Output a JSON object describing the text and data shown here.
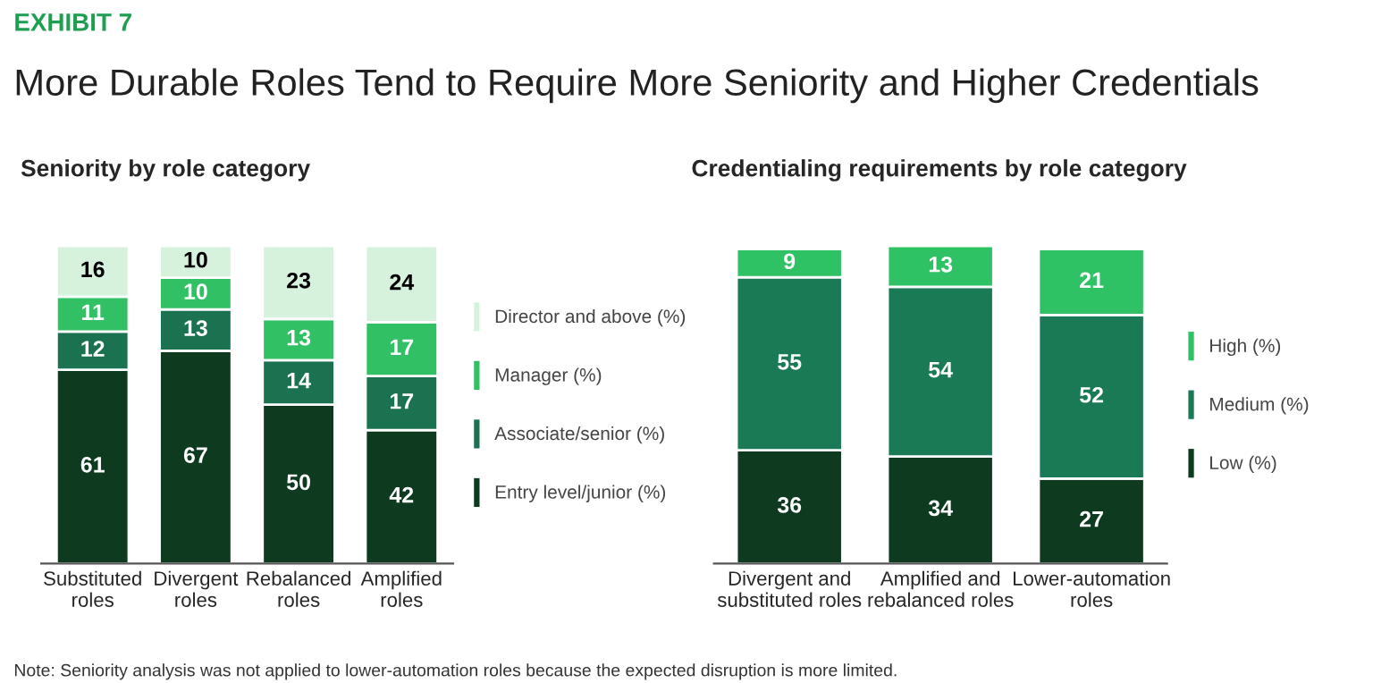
{
  "chart_data": [
    {
      "type": "bar",
      "stacked": true,
      "title": "Seniority by role category",
      "categories": [
        "Substituted roles",
        "Divergent roles",
        "Rebalanced roles",
        "Amplified roles"
      ],
      "series": [
        {
          "name": "Entry level/junior (%)",
          "color": "#0e3b1f",
          "values": [
            61,
            67,
            50,
            42
          ]
        },
        {
          "name": "Associate/senior (%)",
          "color": "#1b7251",
          "values": [
            12,
            13,
            14,
            17
          ]
        },
        {
          "name": "Manager (%)",
          "color": "#32c064",
          "values": [
            11,
            10,
            13,
            17
          ]
        },
        {
          "name": "Director and above (%)",
          "color": "#d6f2dd",
          "values": [
            16,
            10,
            23,
            24
          ]
        }
      ],
      "data_labels": true,
      "legend": "right",
      "tick_labels": "x",
      "grid": false,
      "annotations": [
        "EXHIBIT 7",
        "More Durable Roles Tend to Require More Seniority and Higher Credentials",
        "Note: Seniority analysis was not applied to lower-automation roles because the expected disruption is more limited."
      ]
    },
    {
      "type": "bar",
      "stacked": true,
      "title": "Credentialing requirements by role category",
      "categories": [
        "Divergent and substituted roles",
        "Amplified and rebalanced roles",
        "Lower-automation roles"
      ],
      "series": [
        {
          "name": "Low (%)",
          "color": "#0e3b1f",
          "values": [
            36,
            34,
            27
          ]
        },
        {
          "name": "Medium (%)",
          "color": "#1b7a56",
          "values": [
            55,
            54,
            52
          ]
        },
        {
          "name": "High (%)",
          "color": "#2fc265",
          "values": [
            9,
            13,
            21
          ]
        }
      ],
      "data_labels": true,
      "legend": "right",
      "tick_labels": "x",
      "grid": false
    }
  ]
}
